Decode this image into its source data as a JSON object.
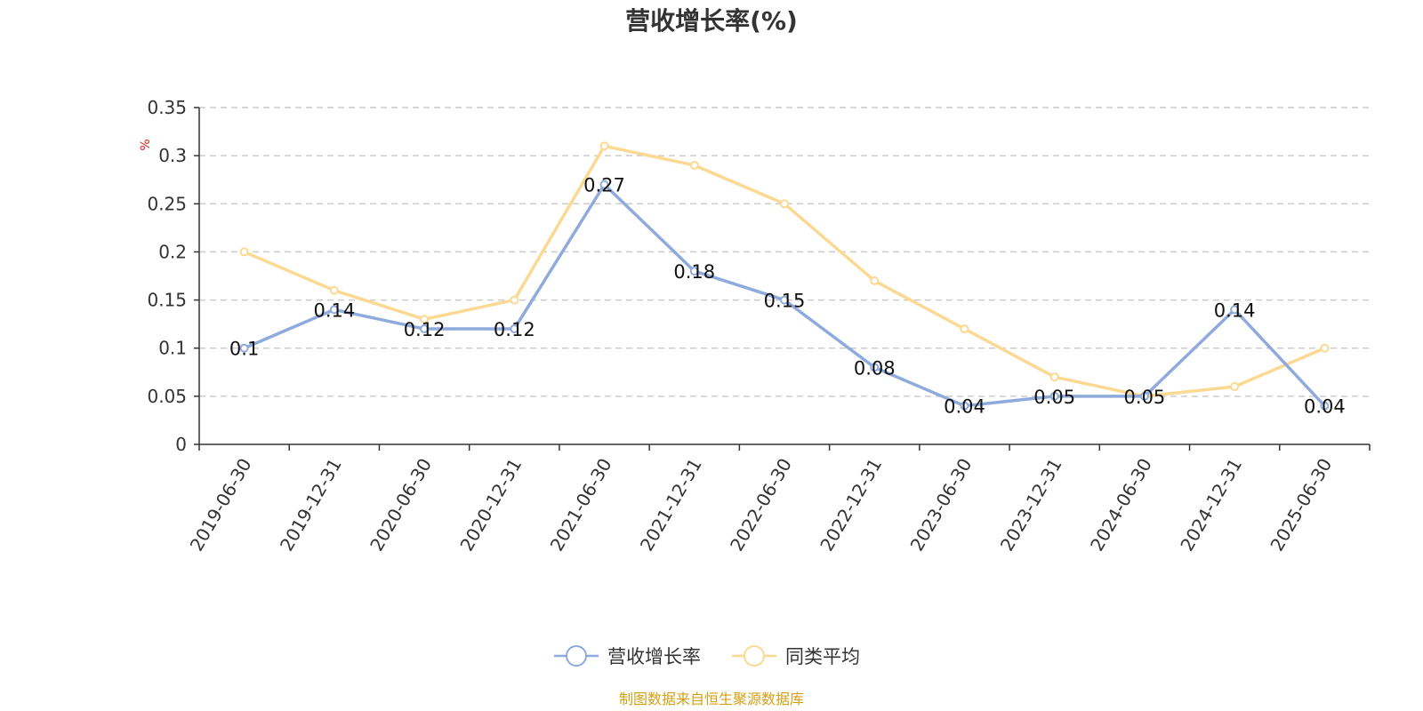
{
  "chart_data": {
    "type": "line",
    "title": "营收增长率(%)",
    "ylabel": "%",
    "xlabel": "",
    "ylim": [
      0,
      0.35
    ],
    "yticks": [
      "0",
      "0.05",
      "0.1",
      "0.15",
      "0.2",
      "0.25",
      "0.3",
      "0.35"
    ],
    "categories": [
      "2019-06-30",
      "2019-12-31",
      "2020-06-30",
      "2020-12-31",
      "2021-06-30",
      "2021-12-31",
      "2022-06-30",
      "2022-12-31",
      "2023-06-30",
      "2023-12-31",
      "2024-06-30",
      "2024-12-31",
      "2025-06-30"
    ],
    "series": [
      {
        "name": "营收增长率",
        "color": "#8faadc",
        "values": [
          0.1,
          0.14,
          0.12,
          0.12,
          0.27,
          0.18,
          0.15,
          0.08,
          0.04,
          0.05,
          0.05,
          0.14,
          0.04
        ],
        "labels": [
          "0.1",
          "0.14",
          "0.12",
          "0.12",
          "0.27",
          "0.18",
          "0.15",
          "0.08",
          "0.04",
          "0.05",
          "0.05",
          "0.14",
          "0.04"
        ]
      },
      {
        "name": "同类平均",
        "color": "#fcd992",
        "values": [
          0.2,
          0.16,
          0.13,
          0.15,
          0.31,
          0.29,
          0.25,
          0.17,
          0.12,
          0.07,
          0.05,
          0.06,
          0.1
        ]
      }
    ],
    "grid": true,
    "legend": "bottom-center"
  },
  "colors": {
    "axis": "#333333",
    "grid": "#cccccc",
    "unit": "#e02020",
    "source": "#d4a017"
  },
  "source_text": "制图数据来自恒生聚源数据库"
}
